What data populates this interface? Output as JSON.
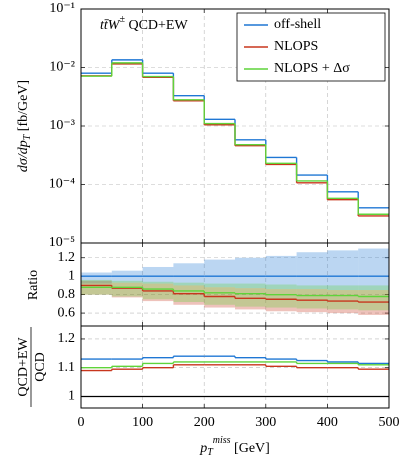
{
  "chart_data": [
    {
      "type": "histogram",
      "annotation": {
        "text": "tt̄W",
        "sup": "±",
        "rest": " QCD+EW"
      },
      "ylabel": {
        "text": "dσ/dp",
        "sub": "T",
        "unit": " [fb/GeV]"
      },
      "log_y": true,
      "grid": true,
      "legend": "upper right",
      "bins": [
        0,
        50,
        100,
        150,
        200,
        250,
        300,
        350,
        400,
        450,
        500
      ],
      "xlim": [
        0,
        500
      ],
      "ylim": [
        1e-05,
        0.1
      ],
      "yticks": [
        {
          "value": 1e-05,
          "label": "10⁻⁵"
        },
        {
          "value": 0.0001,
          "label": "10⁻⁴"
        },
        {
          "value": 0.001,
          "label": "10⁻³"
        },
        {
          "value": 0.01,
          "label": "10⁻²"
        },
        {
          "value": 0.1,
          "label": "10⁻¹"
        }
      ],
      "series": [
        {
          "name": "off-shell",
          "color": "#1f77d4",
          "values": [
            0.008,
            0.0135,
            0.008,
            0.0033,
            0.0013,
            0.00058,
            0.00029,
            0.000145,
            7.5e-05,
            4e-05
          ]
        },
        {
          "name": "NLOPS",
          "color": "#c8361d",
          "values": [
            0.0072,
            0.0115,
            0.0068,
            0.0027,
            0.00105,
            0.00046,
            0.00022,
            0.000107,
            5.5e-05,
            2.9e-05
          ]
        },
        {
          "name": "NLOPS + Δσ",
          "color": "#5fd43a",
          "values": [
            0.0071,
            0.012,
            0.007,
            0.0028,
            0.0011,
            0.00048,
            0.00023,
            0.000115,
            5.8e-05,
            3.1e-05
          ]
        }
      ]
    },
    {
      "type": "histogram",
      "ylabel": "Ratio",
      "grid": true,
      "bins": [
        0,
        50,
        100,
        150,
        200,
        250,
        300,
        350,
        400,
        450,
        500
      ],
      "xlim": [
        0,
        500
      ],
      "ylim": [
        0.46,
        1.36
      ],
      "yticks": [
        0.6,
        0.8,
        1,
        1.2
      ],
      "series": [
        {
          "color": "#1f77d4",
          "values": [
            1,
            1,
            1,
            1,
            1,
            1,
            1,
            1,
            1,
            1
          ],
          "band_low": [
            0.92,
            0.93,
            0.92,
            0.9,
            0.88,
            0.87,
            0.86,
            0.86,
            0.85,
            0.85
          ],
          "band_high": [
            1.04,
            1.06,
            1.1,
            1.14,
            1.18,
            1.2,
            1.22,
            1.26,
            1.28,
            1.3
          ]
        },
        {
          "color": "#c8361d",
          "values": [
            0.9,
            0.87,
            0.84,
            0.81,
            0.78,
            0.76,
            0.75,
            0.74,
            0.73,
            0.72
          ],
          "band_low": [
            0.8,
            0.77,
            0.73,
            0.69,
            0.66,
            0.64,
            0.62,
            0.61,
            0.6,
            0.58
          ],
          "band_high": [
            0.95,
            0.93,
            0.92,
            0.9,
            0.88,
            0.87,
            0.86,
            0.86,
            0.85,
            0.85
          ]
        },
        {
          "color": "#5fd43a",
          "values": [
            0.88,
            0.88,
            0.86,
            0.84,
            0.82,
            0.81,
            0.8,
            0.79,
            0.79,
            0.78
          ],
          "band_low": [
            0.8,
            0.78,
            0.75,
            0.72,
            0.69,
            0.67,
            0.66,
            0.65,
            0.64,
            0.63
          ],
          "band_high": [
            0.96,
            0.95,
            0.94,
            0.93,
            0.92,
            0.92,
            0.91,
            0.9,
            0.9,
            0.9
          ]
        }
      ]
    },
    {
      "type": "histogram",
      "ylabel": {
        "numerator": "QCD+EW",
        "denominator": "QCD"
      },
      "grid": true,
      "xlabel": {
        "text": "p",
        "sub": "T",
        "sup": "miss",
        "unit": " [GeV]"
      },
      "bins": [
        0,
        50,
        100,
        150,
        200,
        250,
        300,
        350,
        400,
        450,
        500
      ],
      "xlim": [
        0,
        500
      ],
      "xticks": [
        0,
        100,
        200,
        300,
        400,
        500
      ],
      "ylim": [
        0.96,
        1.245
      ],
      "yticks": [
        1,
        1.1,
        1.2
      ],
      "reference": 1,
      "series": [
        {
          "color": "#1f77d4",
          "values": [
            1.13,
            1.13,
            1.135,
            1.14,
            1.14,
            1.135,
            1.13,
            1.125,
            1.12,
            1.115
          ]
        },
        {
          "color": "#c8361d",
          "values": [
            1.09,
            1.095,
            1.1,
            1.11,
            1.11,
            1.11,
            1.105,
            1.1,
            1.1,
            1.095
          ]
        },
        {
          "color": "#5fd43a",
          "values": [
            1.1,
            1.105,
            1.115,
            1.12,
            1.12,
            1.12,
            1.12,
            1.115,
            1.115,
            1.11
          ]
        }
      ]
    }
  ]
}
